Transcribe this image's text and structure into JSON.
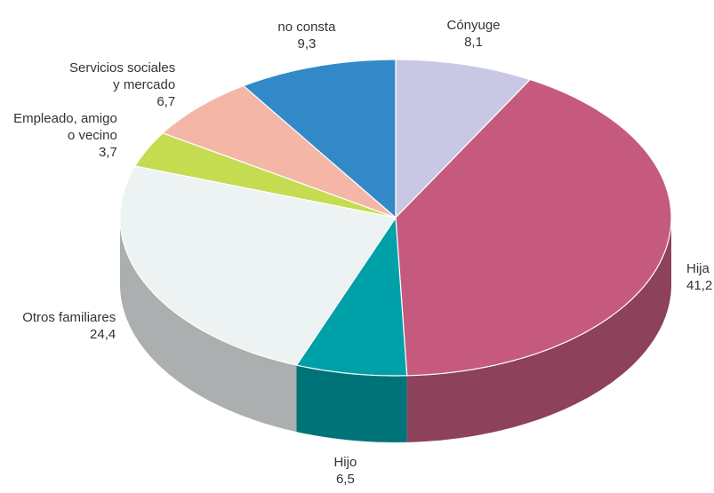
{
  "chart_data": {
    "type": "pie",
    "categories": [
      "Cónyuge",
      "Hija",
      "Hijo",
      "Otros familiares",
      "Empleado, amigo\no vecino",
      "Servicios sociales\ny mercado",
      "no consta"
    ],
    "values": [
      8.1,
      41.2,
      6.5,
      24.4,
      3.7,
      6.7,
      9.3
    ],
    "value_labels": [
      "8,1",
      "41,2",
      "6,5",
      "24,4",
      "3,7",
      "6,7",
      "9,3"
    ],
    "colors": [
      "#c9c8e4",
      "#c55a7e",
      "#00a0a8",
      "#edf3f3",
      "#c5dc50",
      "#f4b6a6",
      "#3389c8"
    ]
  }
}
